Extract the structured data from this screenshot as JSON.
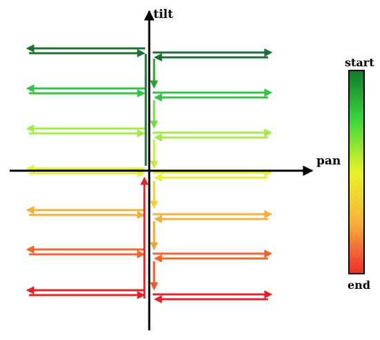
{
  "axes": {
    "x_label": "pan",
    "y_label": "tilt"
  },
  "legend": {
    "start_label": "start",
    "end_label": "end",
    "gradient_colors": [
      "#0f7a2c",
      "#3fd83a",
      "#e8f22a",
      "#f7b23a",
      "#ee2b2b"
    ]
  },
  "scan_path": {
    "description_colors": {
      "start": "#1a6b2e",
      "end": "#d81f2a"
    },
    "rows": [
      {
        "tilt_level": 3,
        "color": "#1f6e32",
        "sides": [
          "left",
          "right"
        ]
      },
      {
        "tilt_level": 2,
        "color": "#36c24a",
        "sides": [
          "left",
          "right"
        ]
      },
      {
        "tilt_level": 1,
        "color": "#a6e84a",
        "sides": [
          "left",
          "right"
        ]
      },
      {
        "tilt_level": 0,
        "color": "#e9ee3a",
        "sides": [
          "left",
          "right"
        ]
      },
      {
        "tilt_level": -1,
        "color": "#f2b13a",
        "sides": [
          "left",
          "right"
        ]
      },
      {
        "tilt_level": -2,
        "color": "#f0662c",
        "sides": [
          "left",
          "right"
        ]
      },
      {
        "tilt_level": -3,
        "color": "#e0242e",
        "sides": [
          "left",
          "right"
        ]
      }
    ]
  }
}
